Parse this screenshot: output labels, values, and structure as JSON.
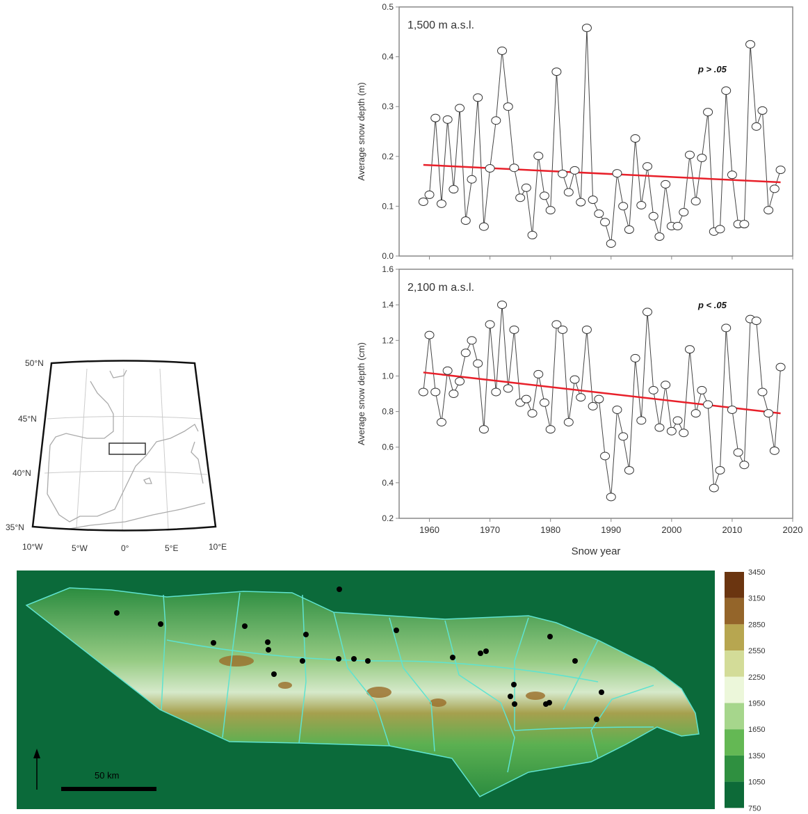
{
  "chart_data": [
    {
      "type": "line",
      "panel_label": "1,500 m a.s.l.",
      "annotation": "p > .05",
      "xlabel": "",
      "ylabel": "Average snow depth (m)",
      "xlim": [
        1955,
        2020
      ],
      "ylim": [
        0,
        0.5
      ],
      "yticks": [
        "0.0",
        "0.1",
        "0.2",
        "0.3",
        "0.4",
        "0.5"
      ],
      "ytick_values": [
        0,
        0.1,
        0.2,
        0.3,
        0.4,
        0.5
      ],
      "x_start": 1959,
      "values": [
        0.109,
        0.123,
        0.277,
        0.105,
        0.274,
        0.134,
        0.297,
        0.071,
        0.154,
        0.318,
        0.059,
        0.176,
        0.272,
        0.412,
        0.3,
        0.177,
        0.117,
        0.137,
        0.042,
        0.201,
        0.121,
        0.092,
        0.37,
        0.165,
        0.128,
        0.172,
        0.108,
        0.458,
        0.113,
        0.085,
        0.068,
        0.025,
        0.166,
        0.1,
        0.053,
        0.236,
        0.102,
        0.18,
        0.08,
        0.039,
        0.144,
        0.06,
        0.06,
        0.088,
        0.203,
        0.11,
        0.197,
        0.289,
        0.049,
        0.054,
        0.332,
        0.163,
        0.064,
        0.064,
        0.425,
        0.26,
        0.292,
        0.092,
        0.135,
        0.173
      ],
      "trend": {
        "x": [
          1959,
          2018
        ],
        "y": [
          0.183,
          0.148
        ]
      },
      "trend_color": "#e8202a"
    },
    {
      "type": "line",
      "panel_label": "2,100 m a.s.l.",
      "annotation": "p < .05",
      "xlabel": "Snow year",
      "ylabel": "Average snow depth (cm)",
      "xlim": [
        1955,
        2020
      ],
      "ylim": [
        0.2,
        1.6
      ],
      "xticks": [
        "1960",
        "1970",
        "1980",
        "1990",
        "2000",
        "2010",
        "2020"
      ],
      "xtick_values": [
        1960,
        1970,
        1980,
        1990,
        2000,
        2010,
        2020
      ],
      "yticks": [
        "0.2",
        "0.4",
        "0.6",
        "0.8",
        "1.0",
        "1.2",
        "1.4",
        "1.6"
      ],
      "ytick_values": [
        0.2,
        0.4,
        0.6,
        0.8,
        1.0,
        1.2,
        1.4,
        1.6
      ],
      "x_start": 1959,
      "values": [
        0.91,
        1.23,
        0.91,
        0.74,
        1.03,
        0.9,
        0.97,
        1.13,
        1.2,
        1.07,
        0.7,
        1.29,
        0.91,
        1.4,
        0.93,
        1.26,
        0.85,
        0.87,
        0.79,
        1.01,
        0.85,
        0.7,
        1.29,
        1.26,
        0.74,
        0.98,
        0.88,
        1.26,
        0.83,
        0.87,
        0.55,
        0.32,
        0.81,
        0.66,
        0.47,
        1.1,
        0.75,
        1.36,
        0.92,
        0.71,
        0.95,
        0.69,
        0.75,
        0.68,
        1.15,
        0.79,
        0.92,
        0.84,
        0.37,
        0.47,
        1.27,
        0.81,
        0.57,
        0.5,
        1.32,
        1.31,
        0.91,
        0.79,
        0.58,
        1.05
      ],
      "trend": {
        "x": [
          1959,
          2018
        ],
        "y": [
          1.02,
          0.79
        ]
      },
      "trend_color": "#e8202a"
    }
  ],
  "inset_map": {
    "lat_labels": [
      "50°N",
      "45°N",
      "40°N",
      "35°N"
    ],
    "lon_labels": [
      "10°W",
      "5°W",
      "0°",
      "5°E",
      "10°E"
    ]
  },
  "dem_map": {
    "scale_label": "50 km",
    "colorbar_labels": [
      "3450",
      "3150",
      "2850",
      "2550",
      "2250",
      "1950",
      "1650",
      "1350",
      "1050",
      "750"
    ],
    "colorbar_colors": [
      "#6b3510",
      "#94652a",
      "#b7a650",
      "#d3dc98",
      "#ecf7da",
      "#a6d68c",
      "#64b854",
      "#2f9040",
      "#0d6a38"
    ],
    "background_color": "#0b6a3a",
    "basin_line_color": "#5fe3d0"
  }
}
